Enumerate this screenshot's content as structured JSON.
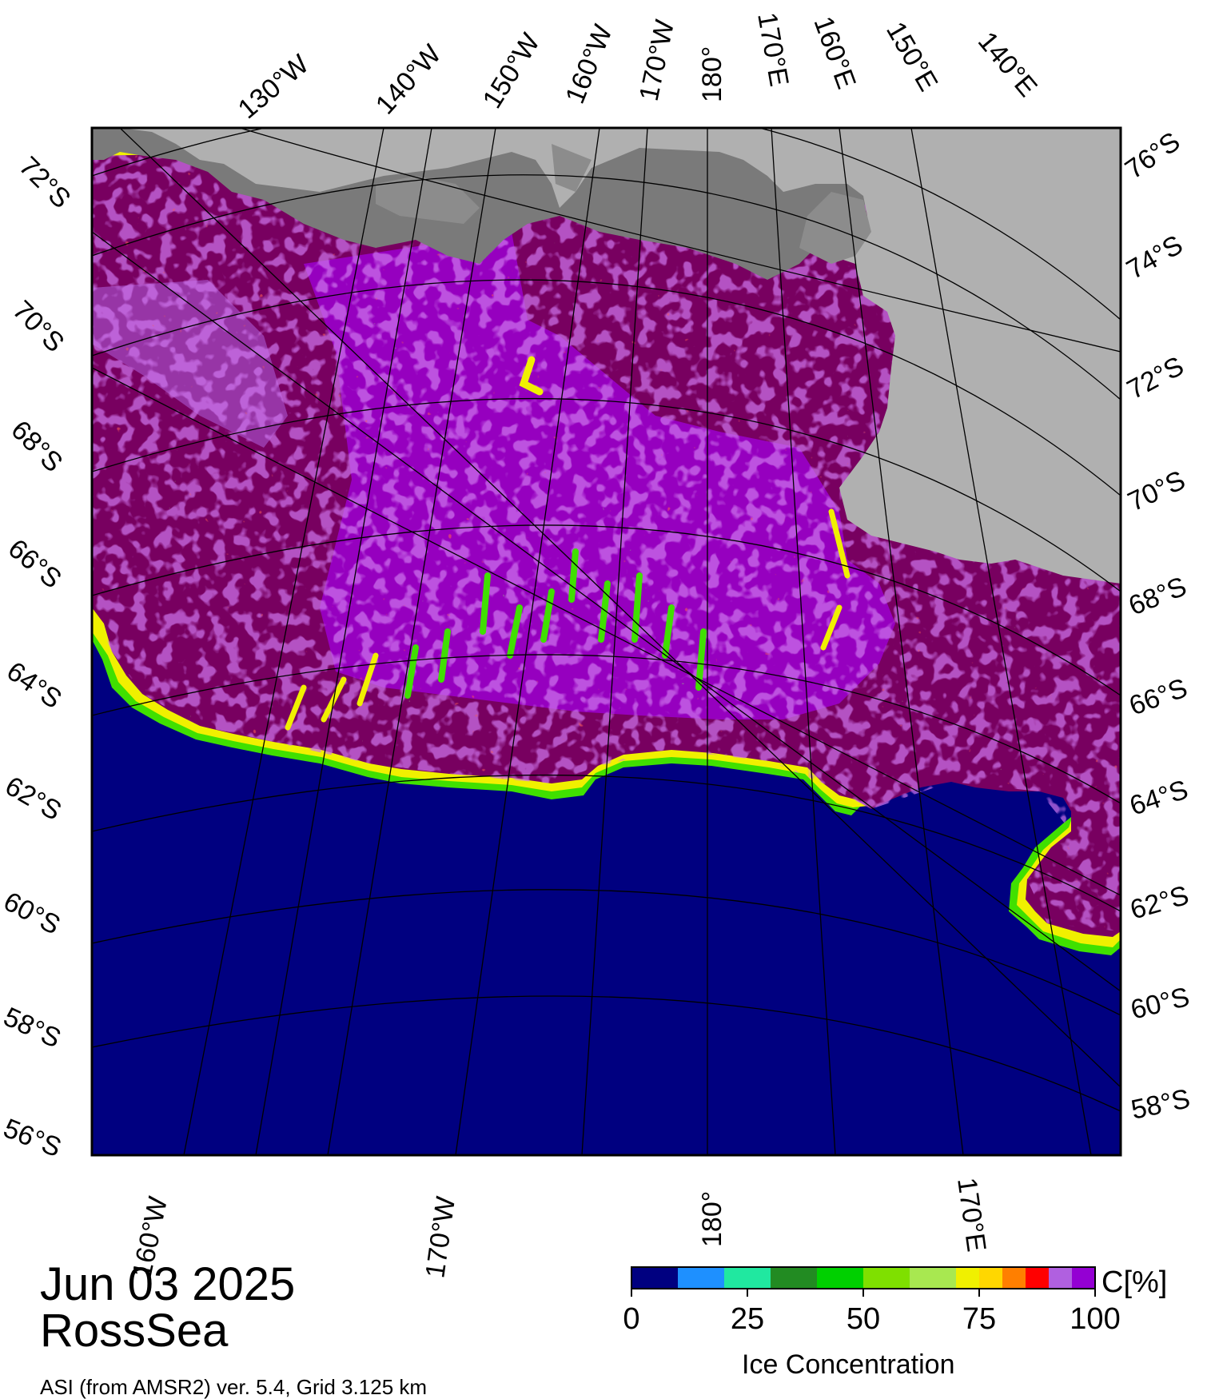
{
  "date": "Jun 03 2025",
  "region": "RossSea",
  "source": "ASI (from AMSR2) ver. 5.4,  Grid 3.125 km",
  "colors": {
    "open_water": "#000080",
    "land": "#b0b0b0",
    "ice_shelf": "#7a7a7a",
    "ice_sheet_dark": "#8c8c8c",
    "pack_ice": "#780060",
    "ice_mid": "#9b00d0",
    "ice_light": "#b060e0",
    "edge_yellow": "#f0f000",
    "edge_green": "#40e000"
  },
  "legend": {
    "title": "Ice Concentration",
    "unit": "C[%]",
    "tick_labels": [
      "0",
      "25",
      "50",
      "75",
      "100"
    ],
    "bins": [
      {
        "from": 0,
        "to": 10,
        "color": "#000080"
      },
      {
        "from": 10,
        "to": 20,
        "color": "#1e90ff"
      },
      {
        "from": 20,
        "to": 30,
        "color": "#20e8a0"
      },
      {
        "from": 30,
        "to": 40,
        "color": "#228b22"
      },
      {
        "from": 40,
        "to": 50,
        "color": "#00d000"
      },
      {
        "from": 50,
        "to": 60,
        "color": "#7fe000"
      },
      {
        "from": 60,
        "to": 70,
        "color": "#a8e850"
      },
      {
        "from": 70,
        "to": 75,
        "color": "#f0f000"
      },
      {
        "from": 75,
        "to": 80,
        "color": "#ffd700"
      },
      {
        "from": 80,
        "to": 85,
        "color": "#ff7f00"
      },
      {
        "from": 85,
        "to": 90,
        "color": "#ff0000"
      },
      {
        "from": 90,
        "to": 95,
        "color": "#b060e0"
      },
      {
        "from": 95,
        "to": 100,
        "color": "#9400d3"
      }
    ]
  },
  "graticule": {
    "latitude_labels_left": [
      "72°S",
      "70°S",
      "68°S",
      "66°S",
      "64°S",
      "62°S",
      "60°S",
      "58°S",
      "56°S"
    ],
    "latitude_labels_right": [
      "76°S",
      "74°S",
      "72°S",
      "70°S",
      "68°S",
      "66°S",
      "64°S",
      "62°S",
      "60°S",
      "58°S"
    ],
    "longitude_labels_top": [
      "130°W",
      "140°W",
      "150°W",
      "160°W",
      "170°W",
      "180°",
      "170°E",
      "160°E",
      "150°E",
      "140°E"
    ],
    "longitude_labels_bottom": [
      "160°W",
      "170°W",
      "180°",
      "170°E"
    ]
  }
}
